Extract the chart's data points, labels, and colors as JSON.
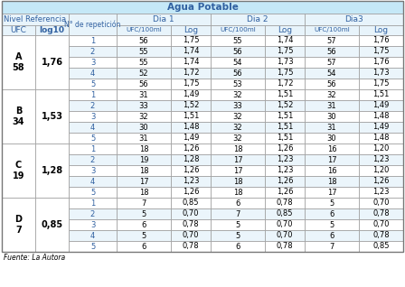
{
  "title": "Agua Potable",
  "header_nivel": "Nivel Referencia",
  "header_rep": "N° de repetición",
  "header_dia1": "Dia 1",
  "header_dia2": "Dia 2",
  "header_dia3": "Dia3",
  "header_ufc": "UFC",
  "header_log10": "log10",
  "header_ufc100": "UFC/100ml",
  "header_log": "Log",
  "groups": [
    {
      "label": "A",
      "ufc": "58",
      "log10": "1,76",
      "rows": [
        {
          "rep": "1",
          "d1_ufc": "56",
          "d1_log": "1,75",
          "d2_ufc": "55",
          "d2_log": "1,74",
          "d3_ufc": "57",
          "d3_log": "1,76"
        },
        {
          "rep": "2",
          "d1_ufc": "55",
          "d1_log": "1,74",
          "d2_ufc": "56",
          "d2_log": "1,75",
          "d3_ufc": "56",
          "d3_log": "1,75"
        },
        {
          "rep": "3",
          "d1_ufc": "55",
          "d1_log": "1,74",
          "d2_ufc": "54",
          "d2_log": "1,73",
          "d3_ufc": "57",
          "d3_log": "1,76"
        },
        {
          "rep": "4",
          "d1_ufc": "52",
          "d1_log": "1,72",
          "d2_ufc": "56",
          "d2_log": "1,75",
          "d3_ufc": "54",
          "d3_log": "1,73"
        },
        {
          "rep": "5",
          "d1_ufc": "56",
          "d1_log": "1,75",
          "d2_ufc": "53",
          "d2_log": "1,72",
          "d3_ufc": "56",
          "d3_log": "1,75"
        }
      ]
    },
    {
      "label": "B",
      "ufc": "34",
      "log10": "1,53",
      "rows": [
        {
          "rep": "1",
          "d1_ufc": "31",
          "d1_log": "1,49",
          "d2_ufc": "32",
          "d2_log": "1,51",
          "d3_ufc": "32",
          "d3_log": "1,51"
        },
        {
          "rep": "2",
          "d1_ufc": "33",
          "d1_log": "1,52",
          "d2_ufc": "33",
          "d2_log": "1,52",
          "d3_ufc": "31",
          "d3_log": "1,49"
        },
        {
          "rep": "3",
          "d1_ufc": "32",
          "d1_log": "1,51",
          "d2_ufc": "32",
          "d2_log": "1,51",
          "d3_ufc": "30",
          "d3_log": "1,48"
        },
        {
          "rep": "4",
          "d1_ufc": "30",
          "d1_log": "1,48",
          "d2_ufc": "32",
          "d2_log": "1,51",
          "d3_ufc": "31",
          "d3_log": "1,49"
        },
        {
          "rep": "5",
          "d1_ufc": "31",
          "d1_log": "1,49",
          "d2_ufc": "32",
          "d2_log": "1,51",
          "d3_ufc": "30",
          "d3_log": "1,48"
        }
      ]
    },
    {
      "label": "C",
      "ufc": "19",
      "log10": "1,28",
      "rows": [
        {
          "rep": "1",
          "d1_ufc": "18",
          "d1_log": "1,26",
          "d2_ufc": "18",
          "d2_log": "1,26",
          "d3_ufc": "16",
          "d3_log": "1,20"
        },
        {
          "rep": "2",
          "d1_ufc": "19",
          "d1_log": "1,28",
          "d2_ufc": "17",
          "d2_log": "1,23",
          "d3_ufc": "17",
          "d3_log": "1,23"
        },
        {
          "rep": "3",
          "d1_ufc": "18",
          "d1_log": "1,26",
          "d2_ufc": "17",
          "d2_log": "1,23",
          "d3_ufc": "16",
          "d3_log": "1,20"
        },
        {
          "rep": "4",
          "d1_ufc": "17",
          "d1_log": "1,23",
          "d2_ufc": "18",
          "d2_log": "1,26",
          "d3_ufc": "18",
          "d3_log": "1,26"
        },
        {
          "rep": "5",
          "d1_ufc": "18",
          "d1_log": "1,26",
          "d2_ufc": "18",
          "d2_log": "1,26",
          "d3_ufc": "17",
          "d3_log": "1,23"
        }
      ]
    },
    {
      "label": "D",
      "ufc": "7",
      "log10": "0,85",
      "rows": [
        {
          "rep": "1",
          "d1_ufc": "7",
          "d1_log": "0,85",
          "d2_ufc": "6",
          "d2_log": "0,78",
          "d3_ufc": "5",
          "d3_log": "0,70"
        },
        {
          "rep": "2",
          "d1_ufc": "5",
          "d1_log": "0,70",
          "d2_ufc": "7",
          "d2_log": "0,85",
          "d3_ufc": "6",
          "d3_log": "0,78"
        },
        {
          "rep": "3",
          "d1_ufc": "6",
          "d1_log": "0,78",
          "d2_ufc": "5",
          "d2_log": "0,70",
          "d3_ufc": "5",
          "d3_log": "0,70"
        },
        {
          "rep": "4",
          "d1_ufc": "5",
          "d1_log": "0,70",
          "d2_ufc": "5",
          "d2_log": "0,70",
          "d3_ufc": "6",
          "d3_log": "0,78"
        },
        {
          "rep": "5",
          "d1_ufc": "6",
          "d1_log": "0,78",
          "d2_ufc": "6",
          "d2_log": "0,78",
          "d3_ufc": "7",
          "d3_log": "0,85"
        }
      ]
    }
  ],
  "footer": "Fuente: La Autora",
  "title_bg": "#C5E8F7",
  "header_bg": "#E8F4FB",
  "row_bg_odd": "#FFFFFF",
  "row_bg_even": "#EBF5FB",
  "border_color": "#999999",
  "text_blue": "#3060A0",
  "text_black": "#000000",
  "text_bold_black": "#111111"
}
